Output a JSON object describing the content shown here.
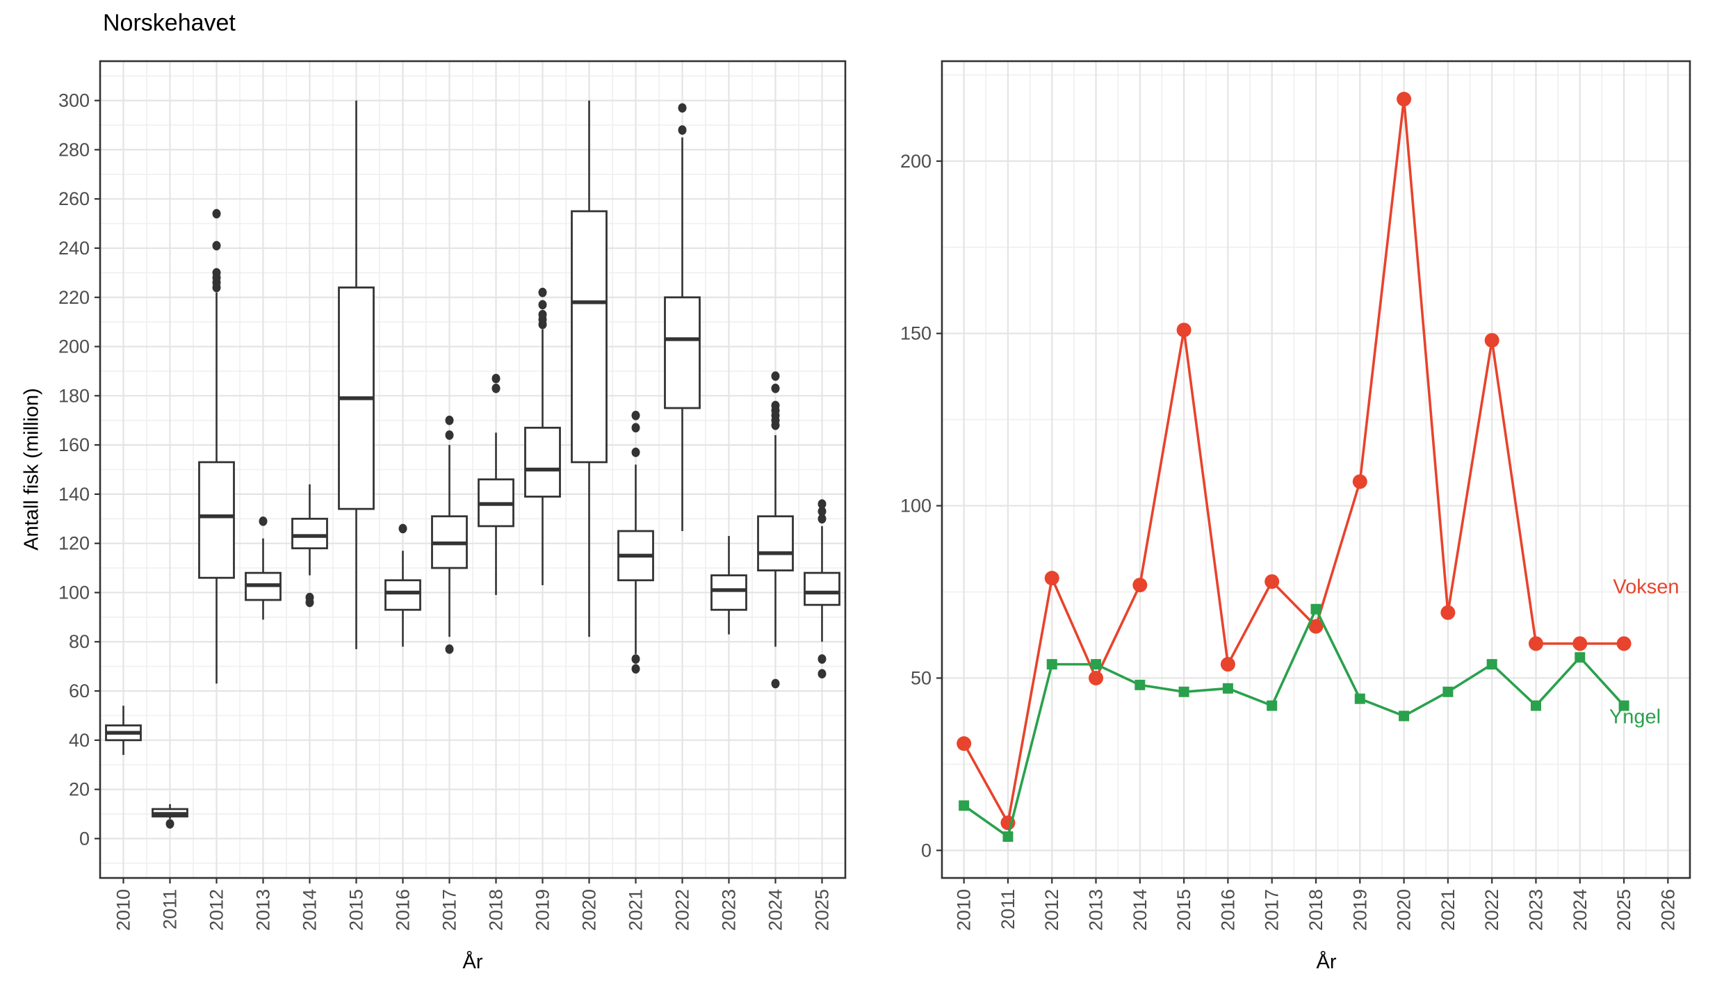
{
  "page_background": "#FFFFFF",
  "theme": {
    "grid_major_color": "#E4E4E4",
    "grid_minor_color": "#F0F0F0",
    "panel_border_color": "#333333",
    "axis_text_color": "#4D4D4D",
    "axis_title_color": "#000000",
    "box_color": "#333333",
    "voksen_color": "#E8432C",
    "yngel_color": "#2AA14C"
  },
  "chart_data": [
    {
      "type": "boxplot",
      "title": "Norskehavet",
      "xlabel": "År",
      "ylabel": "Antall fisk (million)",
      "ylim": [
        -16,
        316
      ],
      "yticks": [
        0,
        20,
        40,
        60,
        80,
        100,
        120,
        140,
        160,
        180,
        200,
        220,
        240,
        260,
        280,
        300
      ],
      "grid": true,
      "legend_position": "none",
      "categories": [
        "2010",
        "2011",
        "2012",
        "2013",
        "2014",
        "2015",
        "2016",
        "2017",
        "2018",
        "2019",
        "2020",
        "2021",
        "2022",
        "2023",
        "2024",
        "2025"
      ],
      "boxes": [
        {
          "year": "2010",
          "low": 34,
          "q1": 40,
          "median": 43,
          "q3": 46,
          "high": 54,
          "outliers": []
        },
        {
          "year": "2011",
          "low": 8,
          "q1": 9,
          "median": 10,
          "q3": 12,
          "high": 14,
          "outliers": [
            6
          ]
        },
        {
          "year": "2012",
          "low": 63,
          "q1": 106,
          "median": 131,
          "q3": 153,
          "high": 222,
          "outliers": [
            224,
            226,
            228,
            230,
            241,
            254
          ]
        },
        {
          "year": "2013",
          "low": 89,
          "q1": 97,
          "median": 103,
          "q3": 108,
          "high": 122,
          "outliers": [
            129
          ]
        },
        {
          "year": "2014",
          "low": 107,
          "q1": 118,
          "median": 123,
          "q3": 130,
          "high": 144,
          "outliers": [
            96,
            98
          ]
        },
        {
          "year": "2015",
          "low": 77,
          "q1": 134,
          "median": 179,
          "q3": 224,
          "high": 300,
          "outliers": []
        },
        {
          "year": "2016",
          "low": 78,
          "q1": 93,
          "median": 100,
          "q3": 105,
          "high": 117,
          "outliers": [
            126
          ]
        },
        {
          "year": "2017",
          "low": 82,
          "q1": 110,
          "median": 120,
          "q3": 131,
          "high": 160,
          "outliers": [
            77,
            164,
            170
          ]
        },
        {
          "year": "2018",
          "low": 99,
          "q1": 127,
          "median": 136,
          "q3": 146,
          "high": 165,
          "outliers": [
            183,
            187
          ]
        },
        {
          "year": "2019",
          "low": 103,
          "q1": 139,
          "median": 150,
          "q3": 167,
          "high": 207,
          "outliers": [
            209,
            211,
            213,
            217,
            222
          ]
        },
        {
          "year": "2020",
          "low": 82,
          "q1": 153,
          "median": 218,
          "q3": 255,
          "high": 300,
          "outliers": []
        },
        {
          "year": "2021",
          "low": 75,
          "q1": 105,
          "median": 115,
          "q3": 125,
          "high": 152,
          "outliers": [
            69,
            73,
            157,
            167,
            172
          ]
        },
        {
          "year": "2022",
          "low": 125,
          "q1": 175,
          "median": 203,
          "q3": 220,
          "high": 285,
          "outliers": [
            288,
            297
          ]
        },
        {
          "year": "2023",
          "low": 83,
          "q1": 93,
          "median": 101,
          "q3": 107,
          "high": 123,
          "outliers": []
        },
        {
          "year": "2024",
          "low": 78,
          "q1": 109,
          "median": 116,
          "q3": 131,
          "high": 164,
          "outliers": [
            63,
            168,
            170,
            172,
            174,
            176,
            183,
            188
          ]
        },
        {
          "year": "2025",
          "low": 80,
          "q1": 95,
          "median": 100,
          "q3": 108,
          "high": 127,
          "outliers": [
            67,
            73,
            130,
            133,
            136
          ]
        }
      ]
    },
    {
      "type": "line",
      "title": "",
      "xlabel": "År",
      "ylabel": "",
      "ylim": [
        -8,
        229
      ],
      "yticks": [
        0,
        50,
        100,
        150,
        200
      ],
      "grid": true,
      "legend_position": "inline-right-labels",
      "categories": [
        "2010",
        "2011",
        "2012",
        "2013",
        "2014",
        "2015",
        "2016",
        "2017",
        "2018",
        "2019",
        "2020",
        "2021",
        "2022",
        "2023",
        "2024",
        "2025",
        "2026"
      ],
      "series": [
        {
          "name": "Voksen",
          "marker": "circle",
          "color": "#E8432C",
          "values": [
            31,
            8,
            79,
            50,
            77,
            151,
            54,
            78,
            65,
            107,
            218,
            69,
            148,
            60,
            60,
            60
          ]
        },
        {
          "name": "Yngel",
          "marker": "square",
          "color": "#2AA14C",
          "values": [
            13,
            4,
            54,
            54,
            48,
            46,
            47,
            42,
            70,
            44,
            39,
            46,
            54,
            42,
            56,
            42
          ]
        }
      ]
    }
  ]
}
